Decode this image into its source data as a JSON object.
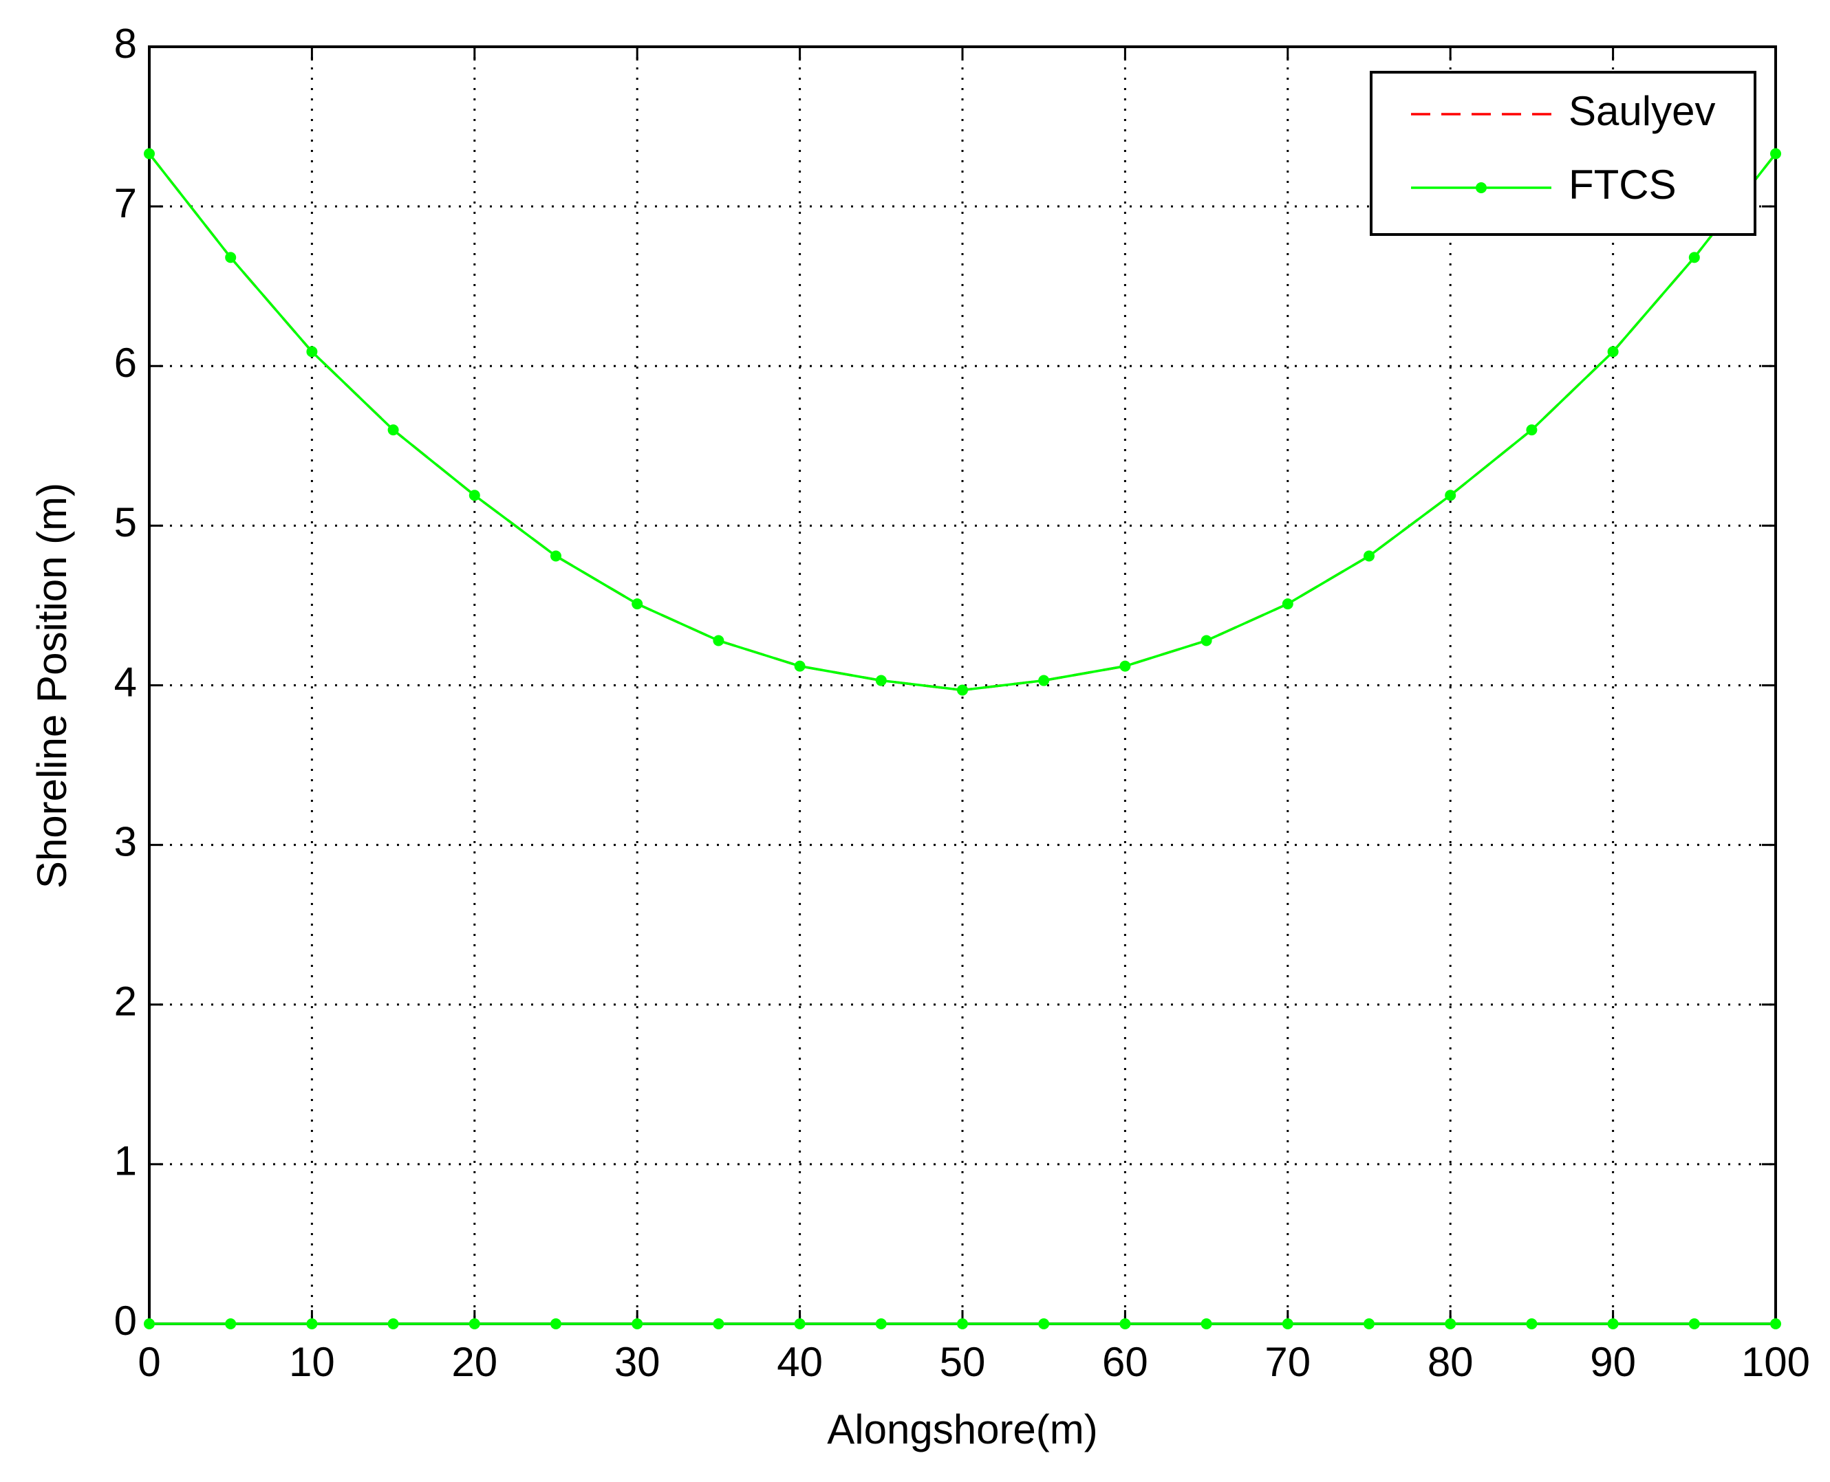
{
  "chart_data": {
    "type": "line",
    "x_label": "Alongshore(m)",
    "y_label": "Shoreline Position (m)",
    "x": [
      0,
      5,
      10,
      15,
      20,
      25,
      30,
      35,
      40,
      45,
      50,
      55,
      60,
      65,
      70,
      75,
      80,
      85,
      90,
      95,
      100
    ],
    "series": [
      {
        "name": "Saulyev",
        "color": "#ff0000",
        "dashed": true,
        "marker": false,
        "values": [
          7.33,
          6.68,
          6.09,
          5.6,
          5.19,
          4.81,
          4.51,
          4.28,
          4.12,
          4.03,
          3.97,
          4.03,
          4.12,
          4.28,
          4.51,
          4.81,
          5.19,
          5.6,
          6.09,
          6.68,
          7.33
        ]
      },
      {
        "name": "FTCS",
        "color": "#00ff00",
        "dashed": false,
        "marker": true,
        "values": [
          7.33,
          6.68,
          6.09,
          5.6,
          5.19,
          4.81,
          4.51,
          4.28,
          4.12,
          4.03,
          3.97,
          4.03,
          4.12,
          4.28,
          4.51,
          4.81,
          5.19,
          5.6,
          6.09,
          6.68,
          7.33
        ]
      },
      {
        "color": "#00ff00",
        "dashed": false,
        "marker": true,
        "values": [
          0,
          0,
          0,
          0,
          0,
          0,
          0,
          0,
          0,
          0,
          0,
          0,
          0,
          0,
          0,
          0,
          0,
          0,
          0,
          0,
          0
        ]
      }
    ],
    "xlim": [
      0,
      100
    ],
    "xticks": [
      0,
      10,
      20,
      30,
      40,
      50,
      60,
      70,
      80,
      90,
      100
    ],
    "ylim": [
      0,
      8
    ],
    "yticks": [
      0,
      1,
      2,
      3,
      4,
      5,
      6,
      7,
      8
    ],
    "grid": true,
    "legend": "upper right"
  }
}
